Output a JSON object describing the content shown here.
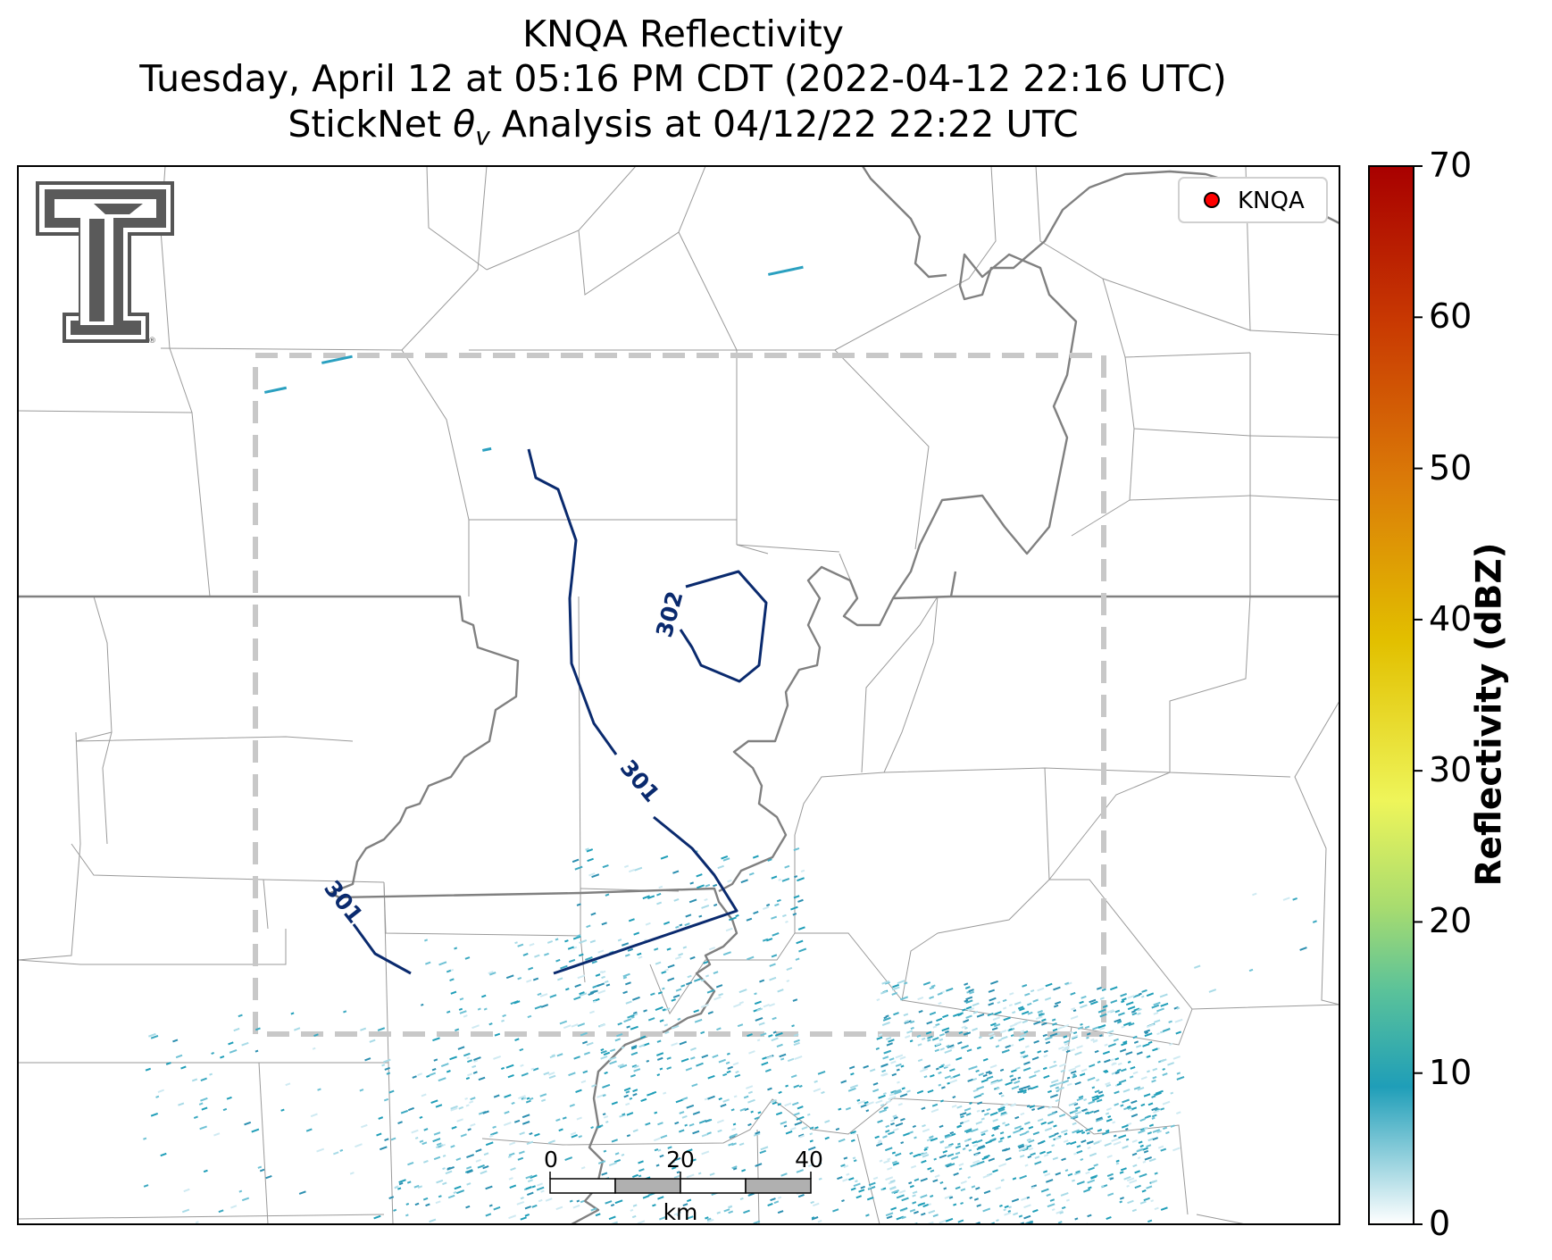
{
  "title": {
    "line1": "KNQA Reflectivity",
    "line2": "Tuesday, April 12 at 05:16 PM CDT (2022-04-12 22:16 UTC)",
    "line3_prefix": "StickNet ",
    "line3_symbol": "θ",
    "line3_subscript": "v",
    "line3_suffix": " Analysis at 04/12/22 22:22 UTC"
  },
  "legend": {
    "label": "KNQA",
    "marker_color": "#ff0000"
  },
  "contours": {
    "color": "#0a2a6e",
    "labels": [
      "301",
      "301",
      "302"
    ]
  },
  "scale_bar": {
    "ticks": [
      "0",
      "20",
      "40"
    ],
    "unit": "km"
  },
  "colorbar": {
    "label": "Reflectivity (dBZ)",
    "ticks": [
      "0",
      "10",
      "20",
      "30",
      "40",
      "50",
      "60",
      "70"
    ],
    "range": [
      0,
      70
    ],
    "colors": [
      "#ffffff",
      "#1f9eb8",
      "#8fd67a",
      "#f2f24a",
      "#e8b400",
      "#d96a0a",
      "#b00000"
    ]
  },
  "logo": {
    "name": "Texas Tech Double T",
    "mark": "®"
  },
  "colors": {
    "county_lines": "#999999",
    "state_lines": "#808080",
    "analysis_box": "#c8c8c8",
    "echo": "#1f9eb8"
  }
}
